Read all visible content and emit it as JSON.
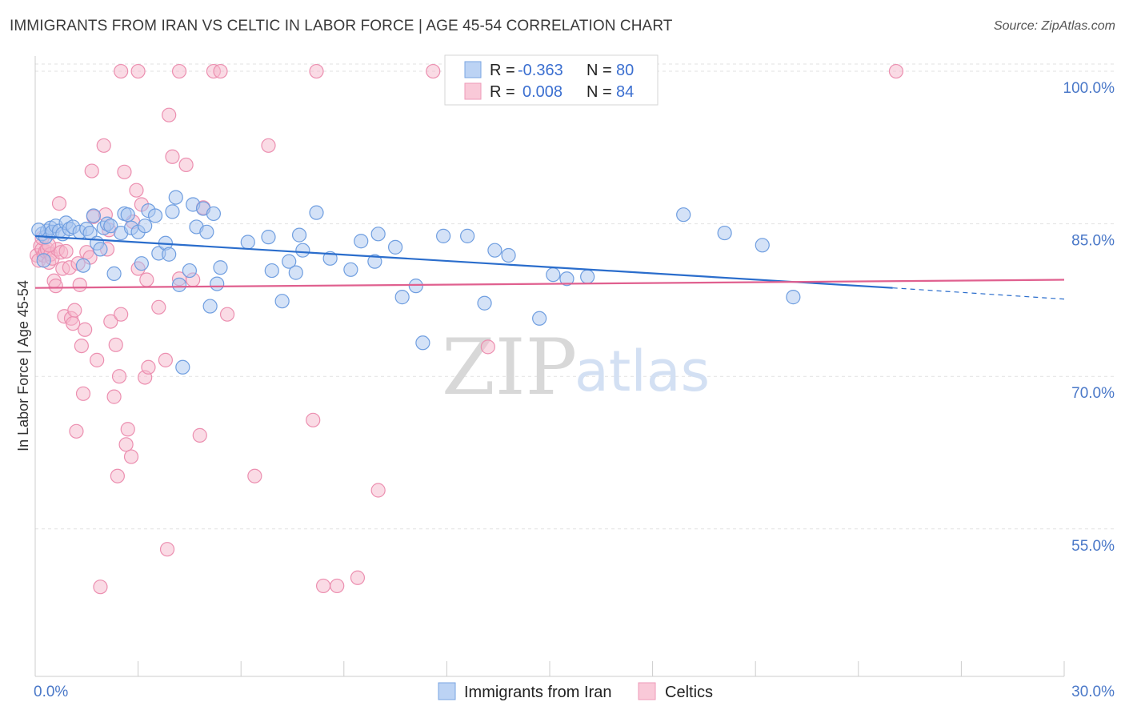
{
  "header": {
    "title": "IMMIGRANTS FROM IRAN VS CELTIC IN LABOR FORCE | AGE 45-54 CORRELATION CHART",
    "source": "Source: ZipAtlas.com"
  },
  "watermark": {
    "zip": "ZIP",
    "atlas": "atlas"
  },
  "colors": {
    "blue_fill": "#a9c6f0",
    "blue_stroke": "#6f9ee0",
    "blue_line": "#2a6dcc",
    "pink_fill": "#f6b7cb",
    "pink_stroke": "#ec8fb0",
    "pink_line": "#e0608f",
    "axis_label": "#4a78c8"
  },
  "legend": {
    "rows": [
      {
        "series": "Immigrants from Iran",
        "r_label": "R =",
        "r_value": "-0.363",
        "n_label": "N =",
        "n_value": "80"
      },
      {
        "series": "Celtics",
        "r_label": "R =",
        "r_value": "0.008",
        "n_label": "N =",
        "n_value": "84"
      }
    ]
  },
  "chart_data": {
    "type": "scatter",
    "title": "IMMIGRANTS FROM IRAN VS CELTIC IN LABOR FORCE | AGE 45-54 CORRELATION CHART",
    "xlabel": "",
    "ylabel": "In Labor Force | Age 45-54",
    "xlim": [
      0,
      30
    ],
    "ylim": [
      40.5,
      101.5
    ],
    "x_tick_labels": [
      {
        "value": 0,
        "label": "0.0%"
      },
      {
        "value": 30,
        "label": "30.0%"
      }
    ],
    "y_tick_labels": [
      {
        "value": 100,
        "label": "100.0%"
      },
      {
        "value": 85,
        "label": "85.0%"
      },
      {
        "value": 70,
        "label": "70.0%"
      },
      {
        "value": 55,
        "label": "55.0%"
      }
    ],
    "x_minor_ticks": [
      0,
      3,
      6,
      9,
      12,
      15,
      18,
      21,
      24,
      27,
      30
    ],
    "grid": true,
    "legend_position": "top-center",
    "series": [
      {
        "name": "Immigrants from Iran",
        "color": "#a9c6f0",
        "trend": {
          "x0": 0,
          "y0": 83.8,
          "x1": 25,
          "y1": 78.7,
          "dash_to_x": 30,
          "dash_to_y": 77.6
        },
        "points": [
          [
            0.2,
            84.0
          ],
          [
            0.3,
            83.7
          ],
          [
            0.35,
            84.3
          ],
          [
            0.45,
            84.6
          ],
          [
            0.5,
            84.2
          ],
          [
            0.6,
            84.8
          ],
          [
            0.7,
            84.3
          ],
          [
            0.8,
            84.0
          ],
          [
            0.9,
            85.1
          ],
          [
            1.0,
            84.5
          ],
          [
            1.1,
            84.7
          ],
          [
            1.3,
            84.2
          ],
          [
            1.4,
            80.9
          ],
          [
            1.5,
            84.5
          ],
          [
            1.6,
            84.1
          ],
          [
            1.7,
            85.8
          ],
          [
            1.8,
            83.1
          ],
          [
            1.9,
            82.5
          ],
          [
            2.0,
            84.6
          ],
          [
            2.1,
            85.0
          ],
          [
            2.2,
            84.8
          ],
          [
            2.3,
            80.1
          ],
          [
            2.5,
            84.1
          ],
          [
            2.6,
            86.0
          ],
          [
            2.7,
            85.9
          ],
          [
            2.8,
            84.6
          ],
          [
            3.0,
            84.2
          ],
          [
            3.1,
            81.1
          ],
          [
            3.2,
            84.8
          ],
          [
            3.3,
            86.3
          ],
          [
            3.5,
            85.8
          ],
          [
            3.6,
            82.1
          ],
          [
            3.8,
            83.1
          ],
          [
            3.9,
            82.0
          ],
          [
            4.0,
            86.2
          ],
          [
            4.1,
            87.6
          ],
          [
            4.2,
            79.0
          ],
          [
            4.3,
            70.9
          ],
          [
            4.5,
            80.4
          ],
          [
            4.6,
            86.9
          ],
          [
            4.7,
            84.7
          ],
          [
            4.9,
            86.5
          ],
          [
            5.0,
            84.2
          ],
          [
            5.1,
            76.9
          ],
          [
            5.2,
            86.0
          ],
          [
            5.3,
            79.1
          ],
          [
            5.4,
            80.7
          ],
          [
            6.2,
            83.2
          ],
          [
            6.8,
            83.7
          ],
          [
            6.9,
            80.4
          ],
          [
            7.2,
            77.4
          ],
          [
            7.4,
            81.3
          ],
          [
            7.6,
            80.2
          ],
          [
            7.7,
            83.9
          ],
          [
            7.8,
            82.4
          ],
          [
            8.2,
            86.1
          ],
          [
            8.6,
            81.6
          ],
          [
            9.2,
            80.5
          ],
          [
            9.5,
            83.3
          ],
          [
            9.9,
            81.3
          ],
          [
            10.0,
            84.0
          ],
          [
            10.5,
            82.7
          ],
          [
            10.7,
            77.8
          ],
          [
            11.1,
            78.9
          ],
          [
            11.3,
            73.3
          ],
          [
            11.9,
            83.8
          ],
          [
            12.6,
            83.8
          ],
          [
            13.1,
            77.2
          ],
          [
            13.4,
            82.4
          ],
          [
            13.8,
            81.9
          ],
          [
            14.7,
            75.7
          ],
          [
            15.1,
            80.0
          ],
          [
            15.5,
            79.6
          ],
          [
            16.1,
            79.8
          ],
          [
            18.9,
            85.9
          ],
          [
            20.1,
            84.1
          ],
          [
            22.1,
            77.8
          ],
          [
            21.2,
            82.9
          ],
          [
            0.1,
            84.4
          ],
          [
            0.25,
            81.4
          ]
        ]
      },
      {
        "name": "Celtics",
        "color": "#f6b7cb",
        "trend": {
          "x0": 0,
          "y0": 78.7,
          "x1": 30,
          "y1": 79.5
        },
        "points": [
          [
            0.05,
            81.9
          ],
          [
            0.1,
            81.4
          ],
          [
            0.15,
            82.8
          ],
          [
            0.2,
            82.5
          ],
          [
            0.25,
            81.9
          ],
          [
            0.3,
            82.3
          ],
          [
            0.35,
            82.5
          ],
          [
            0.4,
            81.2
          ],
          [
            0.45,
            82.0
          ],
          [
            0.5,
            81.6
          ],
          [
            0.55,
            79.4
          ],
          [
            0.6,
            78.9
          ],
          [
            0.65,
            82.5
          ],
          [
            0.7,
            87.0
          ],
          [
            0.75,
            82.2
          ],
          [
            0.8,
            80.6
          ],
          [
            0.85,
            75.9
          ],
          [
            0.9,
            82.3
          ],
          [
            1.0,
            80.7
          ],
          [
            1.05,
            75.7
          ],
          [
            1.1,
            75.2
          ],
          [
            1.15,
            76.5
          ],
          [
            1.2,
            64.6
          ],
          [
            1.3,
            79.0
          ],
          [
            1.35,
            73.0
          ],
          [
            1.4,
            68.3
          ],
          [
            1.45,
            74.6
          ],
          [
            1.5,
            82.2
          ],
          [
            1.6,
            81.7
          ],
          [
            1.65,
            90.2
          ],
          [
            1.7,
            85.7
          ],
          [
            1.8,
            71.6
          ],
          [
            1.9,
            49.3
          ],
          [
            2.0,
            92.7
          ],
          [
            2.05,
            85.9
          ],
          [
            2.1,
            82.5
          ],
          [
            2.2,
            75.4
          ],
          [
            2.3,
            68.0
          ],
          [
            2.35,
            73.1
          ],
          [
            2.4,
            60.2
          ],
          [
            2.45,
            70.0
          ],
          [
            2.5,
            76.1
          ],
          [
            2.6,
            90.1
          ],
          [
            2.65,
            63.3
          ],
          [
            2.7,
            64.8
          ],
          [
            2.8,
            62.1
          ],
          [
            2.85,
            85.2
          ],
          [
            2.95,
            88.3
          ],
          [
            3.0,
            80.6
          ],
          [
            3.1,
            86.9
          ],
          [
            3.2,
            69.9
          ],
          [
            3.25,
            79.5
          ],
          [
            3.3,
            70.9
          ],
          [
            3.6,
            76.8
          ],
          [
            3.8,
            71.6
          ],
          [
            3.85,
            53.0
          ],
          [
            3.9,
            95.7
          ],
          [
            4.0,
            91.6
          ],
          [
            4.2,
            79.6
          ],
          [
            4.4,
            90.8
          ],
          [
            4.6,
            79.5
          ],
          [
            4.8,
            64.2
          ],
          [
            4.9,
            86.6
          ],
          [
            5.6,
            76.1
          ],
          [
            6.4,
            60.2
          ],
          [
            6.8,
            92.7
          ],
          [
            8.1,
            65.7
          ],
          [
            8.4,
            49.4
          ],
          [
            8.8,
            49.4
          ],
          [
            9.4,
            50.2
          ],
          [
            10.0,
            58.8
          ],
          [
            13.2,
            72.9
          ],
          [
            2.5,
            100
          ],
          [
            3.0,
            100
          ],
          [
            4.2,
            100
          ],
          [
            5.2,
            100
          ],
          [
            5.4,
            100
          ],
          [
            8.2,
            100
          ],
          [
            11.6,
            100
          ],
          [
            25.1,
            100
          ],
          [
            0.2,
            83.6
          ],
          [
            0.4,
            82.9
          ],
          [
            1.25,
            81.1
          ],
          [
            2.15,
            84.4
          ]
        ]
      }
    ]
  }
}
